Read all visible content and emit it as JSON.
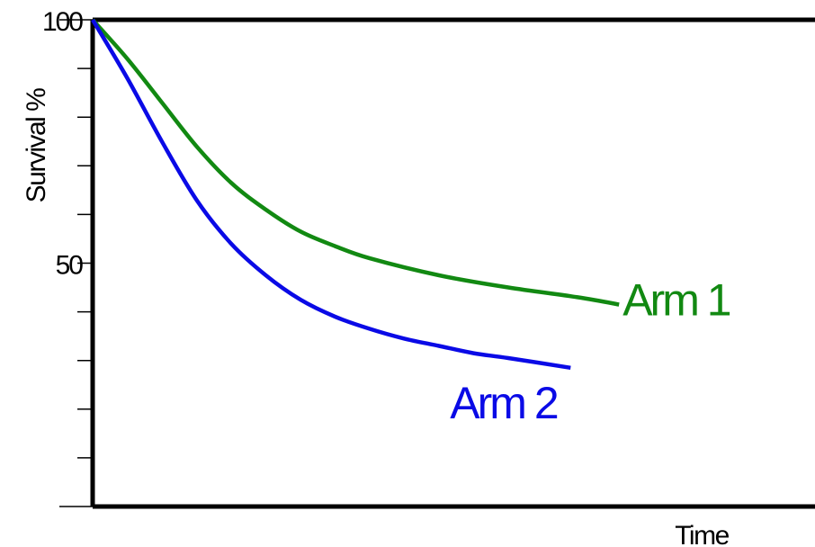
{
  "chart_data": {
    "type": "line",
    "xlabel": "Time",
    "ylabel": "Survival %",
    "x_ticks_labeled": false,
    "ylim": [
      0,
      100
    ],
    "yticks": [
      0,
      10,
      20,
      30,
      40,
      50,
      60,
      70,
      80,
      90,
      100
    ],
    "ytick_labels": [
      {
        "value": 100,
        "label": "100"
      },
      {
        "value": 50,
        "label": "50"
      }
    ],
    "xlim": [
      0,
      10
    ],
    "grid": false,
    "frame": "box",
    "series": [
      {
        "name": "Arm 1",
        "color": "#128912",
        "x": [
          0,
          0.5,
          1,
          1.5,
          2,
          2.5,
          3,
          3.5,
          4,
          5,
          6,
          7,
          7.6
        ],
        "y": [
          100,
          92,
          83,
          74,
          66.5,
          61,
          56.5,
          53.5,
          51,
          47.5,
          45,
          43,
          41.5
        ]
      },
      {
        "name": "Arm 2",
        "color": "#0a0ae6",
        "x": [
          0,
          0.5,
          1,
          1.5,
          2,
          2.5,
          3,
          3.5,
          4,
          4.5,
          5,
          5.5,
          6,
          6.9
        ],
        "y": [
          100,
          88,
          75,
          63,
          54,
          47.5,
          42.5,
          39,
          36.5,
          34.5,
          33,
          31.5,
          30.5,
          28.5
        ]
      }
    ]
  }
}
